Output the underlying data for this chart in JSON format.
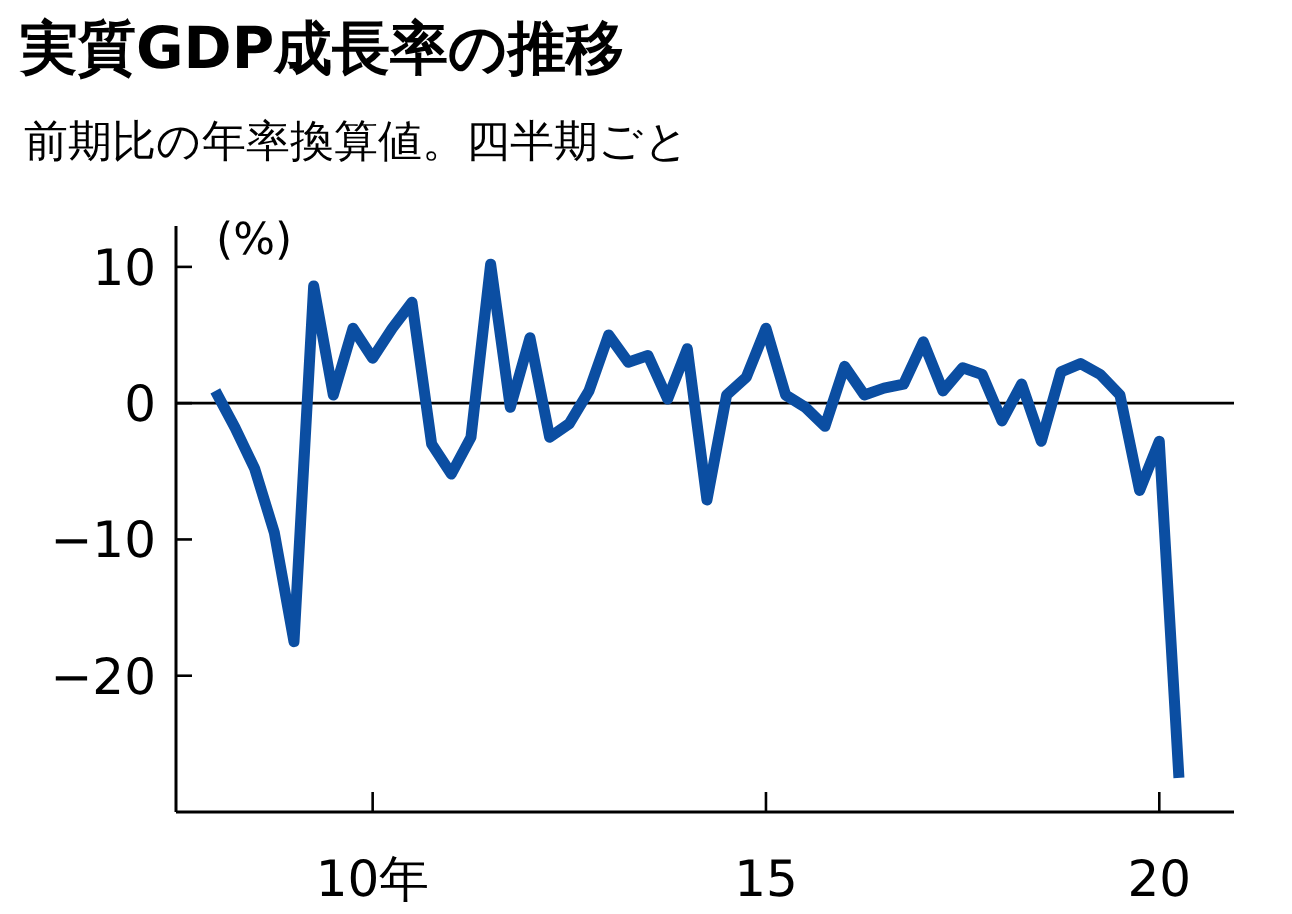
{
  "chart_data": {
    "type": "line",
    "title": "実質GDP成長率の推移",
    "subtitle": "前期比の年率換算値。四半期ごと",
    "ylabel": "(%)",
    "x": [
      8,
      8.25,
      8.5,
      8.75,
      9,
      9.25,
      9.5,
      9.75,
      10,
      10.25,
      10.5,
      10.75,
      11,
      11.25,
      11.5,
      11.75,
      12,
      12.25,
      12.5,
      12.75,
      13,
      13.25,
      13.5,
      13.75,
      14,
      14.25,
      14.5,
      14.75,
      15,
      15.25,
      15.5,
      15.75,
      16,
      16.25,
      16.5,
      16.75,
      17,
      17.25,
      17.5,
      17.75,
      18,
      18.25,
      18.5,
      18.75,
      19,
      19.25,
      19.5,
      19.75,
      20,
      20.25
    ],
    "series": [
      {
        "color": "#0b4ea2",
        "values": [
          0.9,
          -1.8,
          -4.8,
          -9.5,
          -17.5,
          8.6,
          0.6,
          5.5,
          3.3,
          5.5,
          7.4,
          -3.0,
          -5.2,
          -2.5,
          10.2,
          -0.3,
          4.8,
          -2.5,
          -1.5,
          0.9,
          5.0,
          3.0,
          3.5,
          0.3,
          4.0,
          -7.1,
          0.6,
          1.9,
          5.5,
          0.6,
          -0.3,
          -1.7,
          2.7,
          0.6,
          1.1,
          1.4,
          4.5,
          0.9,
          2.6,
          2.1,
          -1.3,
          1.4,
          -2.8,
          2.3,
          2.9,
          2.1,
          0.6,
          -6.4,
          -2.8,
          -27.5
        ]
      }
    ],
    "xlim": [
      7.5,
      20.95
    ],
    "xticks": [
      {
        "value": 10,
        "label": "10年"
      },
      15,
      20
    ],
    "ylim": [
      -30,
      13
    ],
    "yticks": [
      10,
      0,
      {
        "value": -10,
        "label": "−10"
      },
      {
        "value": -20,
        "label": "−20"
      }
    ],
    "ref_lines": [
      {
        "axis": "y",
        "value": 0,
        "color": "#000000"
      }
    ],
    "grid": false,
    "marker": "none",
    "line_style": "solid"
  }
}
